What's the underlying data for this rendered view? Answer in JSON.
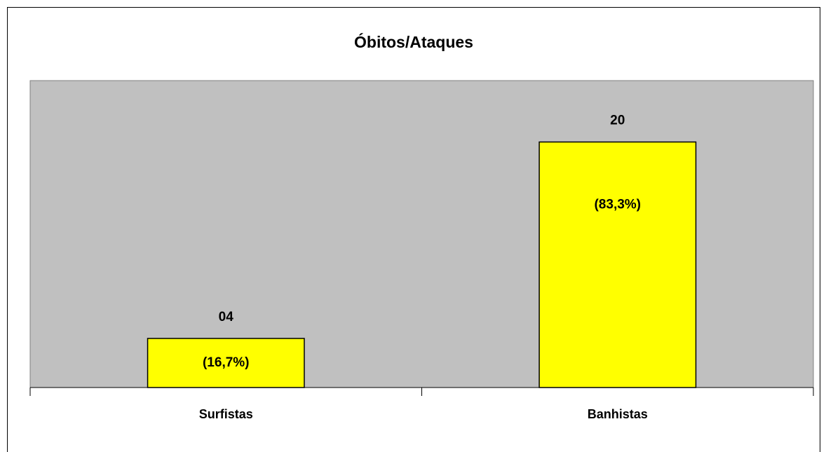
{
  "chart_data": {
    "type": "bar",
    "title": "Óbitos/Ataques",
    "categories": [
      "Surfistas",
      "Banhistas"
    ],
    "values": [
      4,
      20
    ],
    "value_labels": [
      "04",
      "20"
    ],
    "percent_labels": [
      "(16,7%)",
      "(83,3%)"
    ],
    "color": "#ffff00",
    "ylim": [
      0,
      25
    ]
  }
}
